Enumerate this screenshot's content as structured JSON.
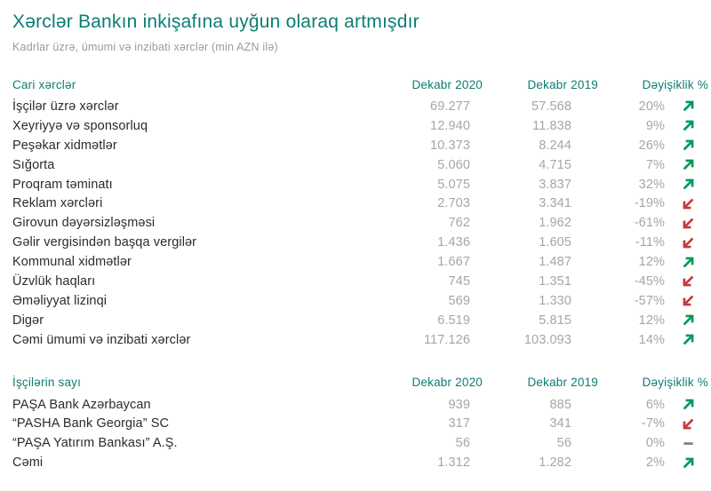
{
  "page": {
    "title": "Xərclər Bankın inkişafına uyğun olaraq artmışdır",
    "subtitle": "Kadrlar üzrə, ümumi və inzibati xərclər (min AZN ilə)"
  },
  "colors": {
    "teal": "#0d7d72",
    "dark_text": "#2b2b2f",
    "value_gray": "#a6a6aa",
    "subtitle_gray": "#9b9ba0",
    "green_arrow": "#00995a",
    "red_arrow": "#c33a3e",
    "flat_dash": "#85858a"
  },
  "icons": {
    "up": "trend-up-arrow",
    "down": "trend-down-arrow",
    "flat": "no-change-dash"
  },
  "tables": [
    {
      "header": {
        "label": "Cari xərclər",
        "col_2020": "Dekabr 2020",
        "col_2019": "Dekabr 2019",
        "col_change": "Dəyişiklik %"
      },
      "rows": [
        {
          "label": "İşçilər üzrə xərclər",
          "v2020": "69.277",
          "v2019": "57.568",
          "change": "20%",
          "trend": "up"
        },
        {
          "label": "Xeyriyyə və sponsorluq",
          "v2020": "12.940",
          "v2019": "11.838",
          "change": "9%",
          "trend": "up"
        },
        {
          "label": "Peşəkar xidmətlər",
          "v2020": "10.373",
          "v2019": "8.244",
          "change": "26%",
          "trend": "up"
        },
        {
          "label": "Sığorta",
          "v2020": "5.060",
          "v2019": "4.715",
          "change": "7%",
          "trend": "up"
        },
        {
          "label": "Proqram təminatı",
          "v2020": "5.075",
          "v2019": "3.837",
          "change": "32%",
          "trend": "up"
        },
        {
          "label": "Reklam xərcləri",
          "v2020": "2.703",
          "v2019": "3.341",
          "change": "-19%",
          "trend": "down"
        },
        {
          "label": "Girovun dəyərsizləşməsi",
          "v2020": "762",
          "v2019": "1.962",
          "change": "-61%",
          "trend": "down"
        },
        {
          "label": "Gəlir vergisindən başqa vergilər",
          "v2020": "1.436",
          "v2019": "1.605",
          "change": "-11%",
          "trend": "down"
        },
        {
          "label": "Kommunal xidmətlər",
          "v2020": "1.667",
          "v2019": "1.487",
          "change": "12%",
          "trend": "up"
        },
        {
          "label": "Üzvlük haqları",
          "v2020": "745",
          "v2019": "1.351",
          "change": "-45%",
          "trend": "down"
        },
        {
          "label": "Əməliyyat lizinqi",
          "v2020": "569",
          "v2019": "1.330",
          "change": "-57%",
          "trend": "down"
        },
        {
          "label": "Digər",
          "v2020": "6.519",
          "v2019": "5.815",
          "change": "12%",
          "trend": "up"
        },
        {
          "label": "Cəmi ümumi və inzibati xərclər",
          "v2020": "117.126",
          "v2019": "103.093",
          "change": "14%",
          "trend": "up"
        }
      ]
    },
    {
      "header": {
        "label": "İşçilərin sayı",
        "col_2020": "Dekabr 2020",
        "col_2019": "Dekabr 2019",
        "col_change": "Dəyişiklik %"
      },
      "rows": [
        {
          "label": "PAŞA Bank Azərbaycan",
          "v2020": "939",
          "v2019": "885",
          "change": "6%",
          "trend": "up"
        },
        {
          "label": "“PASHA Bank Georgia” SC",
          "v2020": "317",
          "v2019": "341",
          "change": "-7%",
          "trend": "down"
        },
        {
          "label": "“PAŞA Yatırım Bankası” A.Ş.",
          "v2020": "56",
          "v2019": "56",
          "change": "0%",
          "trend": "flat"
        },
        {
          "label": "Cəmi",
          "v2020": "1.312",
          "v2019": "1.282",
          "change": "2%",
          "trend": "up"
        }
      ]
    }
  ]
}
